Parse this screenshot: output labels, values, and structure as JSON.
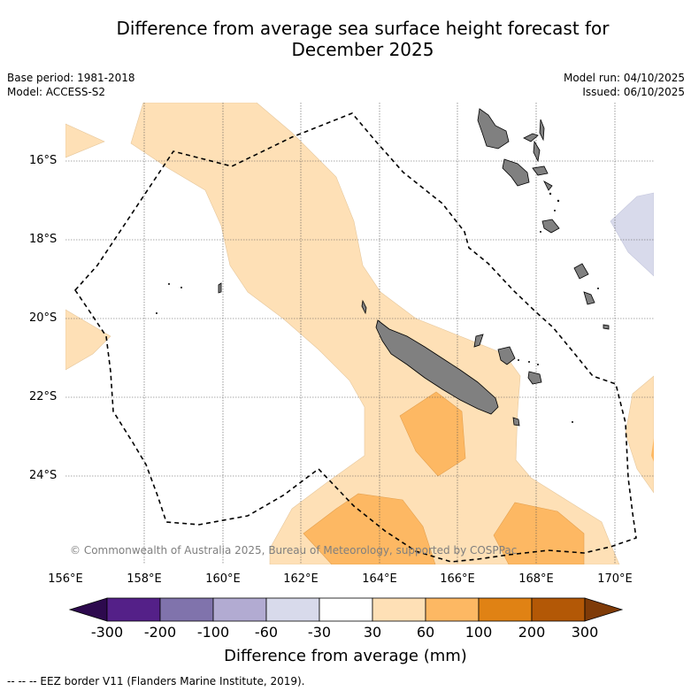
{
  "title_line1": "Difference from average sea surface height forecast for",
  "title_line2": "December 2025",
  "base_period": "Base period: 1981-2018",
  "model": "Model: ACCESS-S2",
  "model_run": "Model run: 04/10/2025",
  "issued": "Issued: 06/10/2025",
  "lat_labels": [
    "16°S",
    "18°S",
    "20°S",
    "22°S",
    "24°S"
  ],
  "lon_labels": [
    "156°E",
    "158°E",
    "160°E",
    "162°E",
    "164°E",
    "166°E",
    "168°E",
    "170°E"
  ],
  "copyright": "© Commonwealth of Australia 2025, Bureau of Meteorology, supported by COSPPac",
  "colorbar": {
    "ticks": [
      "-300",
      "-200",
      "-100",
      "-60",
      "-30",
      "30",
      "60",
      "100",
      "200",
      "300"
    ],
    "label": "Difference from average (mm)",
    "colors": {
      "extend_low": "#2d0a4e",
      "c1": "#542088",
      "c2": "#8073ac",
      "c3": "#b2abd2",
      "c4": "#d8daeb",
      "c5": "#ffffff",
      "c6": "#fee0b6",
      "c7": "#fdb863",
      "c8": "#e08214",
      "c9": "#b35806",
      "extend_high": "#7f3b08"
    }
  },
  "land_color": "#808080",
  "footer": "-- -- -- EEZ border V11 (Flanders Marine Institute, 2019)."
}
